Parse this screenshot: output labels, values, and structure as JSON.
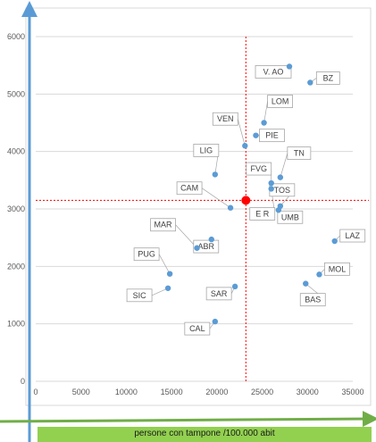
{
  "chart_data": {
    "type": "scatter",
    "title": "",
    "xlabel": "persone con tampone  /100.000 abit",
    "ylabel": "",
    "xlim": [
      0,
      35000
    ],
    "ylim": [
      0,
      6000
    ],
    "x_ticks": [
      0,
      5000,
      10000,
      15000,
      20000,
      25000,
      30000,
      35000
    ],
    "y_ticks": [
      0,
      1000,
      2000,
      3000,
      4000,
      5000,
      6000
    ],
    "grid": true,
    "points": [
      {
        "label": "V. AO",
        "x": 28000,
        "y": 5480
      },
      {
        "label": "BZ",
        "x": 30300,
        "y": 5200
      },
      {
        "label": "LOM",
        "x": 25200,
        "y": 4500
      },
      {
        "label": "VEN",
        "x": 23100,
        "y": 4100
      },
      {
        "label": "PIE",
        "x": 24300,
        "y": 4280
      },
      {
        "label": "LIG",
        "x": 19800,
        "y": 3600
      },
      {
        "label": "TN",
        "x": 27000,
        "y": 3550
      },
      {
        "label": "FVG",
        "x": 26000,
        "y": 3450
      },
      {
        "label": "E R",
        "x": 26000,
        "y": 3350
      },
      {
        "label": "CAM",
        "x": 21500,
        "y": 3020
      },
      {
        "label": "TOS",
        "x": 27000,
        "y": 3050
      },
      {
        "label": "UMB",
        "x": 26800,
        "y": 2980
      },
      {
        "label": "MAR",
        "x": 17800,
        "y": 2320
      },
      {
        "label": "ABR",
        "x": 19400,
        "y": 2470
      },
      {
        "label": "PUG",
        "x": 14800,
        "y": 1870
      },
      {
        "label": "SIC",
        "x": 14600,
        "y": 1620
      },
      {
        "label": "LAZ",
        "x": 33000,
        "y": 2440
      },
      {
        "label": "MOL",
        "x": 31300,
        "y": 1860
      },
      {
        "label": "BAS",
        "x": 29800,
        "y": 1700
      },
      {
        "label": "SAR",
        "x": 22000,
        "y": 1650
      },
      {
        "label": "CAL",
        "x": 19800,
        "y": 1040
      }
    ],
    "mean_point": {
      "x": 23200,
      "y": 3150
    },
    "colors": {
      "point": "#5b9bd5",
      "mean": "#ff0000",
      "guide": "#ff0000",
      "axis_arrow": "#5b9bd5",
      "x_arrow": "#70ad47",
      "label_box": "#92d050"
    }
  }
}
